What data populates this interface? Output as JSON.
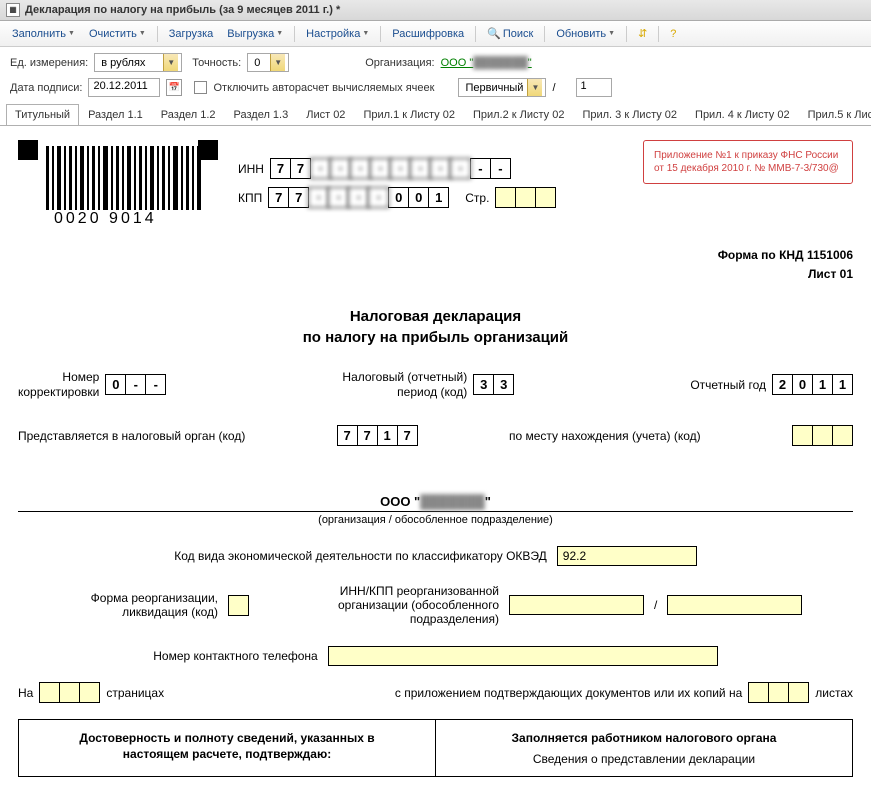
{
  "window": {
    "title": "Декларация по налогу на прибыль (за 9 месяцев 2011 г.) *"
  },
  "toolbar": {
    "fill": "Заполнить",
    "clear": "Очистить",
    "load": "Загрузка",
    "upload": "Выгрузка",
    "settings": "Настройка",
    "decode": "Расшифровка",
    "search": "Поиск",
    "refresh": "Обновить"
  },
  "params": {
    "unit_label": "Ед. измерения:",
    "unit_value": "в рублях",
    "precision_label": "Точность:",
    "precision_value": "0",
    "org_label": "Организация:",
    "org_value": "ООО \"███████\"",
    "date_label": "Дата подписи:",
    "date_value": "20.12.2011",
    "autorecalc_label": "Отключить авторасчет вычисляемых ячеек",
    "primary_value": "Первичный",
    "slash": "/",
    "page_num": "1"
  },
  "tabs": [
    "Титульный",
    "Раздел 1.1",
    "Раздел 1.2",
    "Раздел 1.3",
    "Лист 02",
    "Прил.1 к Листу 02",
    "Прил.2 к Листу 02",
    "Прил. 3 к Листу 02",
    "Прил. 4 к Листу 02",
    "Прил.5 к Листу 02",
    "Ли"
  ],
  "active_tab": 0,
  "form": {
    "barcode_text": "0020 9014",
    "inn_label": "ИНН",
    "inn": [
      "7",
      "7",
      "·",
      "·",
      "·",
      "·",
      "·",
      "·",
      "·",
      "·",
      "-",
      "-"
    ],
    "kpp_label": "КПП",
    "kpp": [
      "7",
      "7",
      "·",
      "·",
      "·",
      "·",
      "0",
      "0",
      "1"
    ],
    "str_label": "Стр.",
    "str_cells": 3,
    "notice1": "Приложение №1 к приказу ФНС России",
    "notice2": "от 15 декабря 2010 г. № ММВ-7-3/730@",
    "knd": "Форма по КНД 1151006",
    "list": "Лист 01",
    "title1": "Налоговая декларация",
    "title2": "по налогу на прибыль организаций",
    "corr_label1": "Номер",
    "corr_label2": "корректировки",
    "corr": [
      "0",
      "-",
      "-"
    ],
    "period_label1": "Налоговый (отчетный)",
    "period_label2": "период (код)",
    "period": [
      "3",
      "3"
    ],
    "year_label": "Отчетный год",
    "year": [
      "2",
      "0",
      "1",
      "1"
    ],
    "tax_org_label": "Представляется в налоговый орган (код)",
    "tax_org": [
      "7",
      "7",
      "1",
      "7"
    ],
    "place_label": "по месту нахождения (учета) (код)",
    "place_cells": 3,
    "org_name": "ООО \"███████\"",
    "org_subnote": "(организация / обособленное подразделение)",
    "okved_label": "Код вида экономической деятельности по классификатору ОКВЭД",
    "okved_value": "92.2",
    "reorg_label1": "Форма реорганизации,",
    "reorg_label2": "ликвидация (код)",
    "reorg_innkpp_label1": "ИНН/КПП реорганизованной",
    "reorg_innkpp_label2": "организации (обособленного",
    "reorg_innkpp_label3": "подразделения)",
    "reorg_slash": "/",
    "phone_label": "Номер контактного телефона",
    "pages_on": "На",
    "pages_suffix": "страницах",
    "attach_label": "с приложением подтверждающих документов или их копий на",
    "attach_suffix": "листах",
    "confirm_head1": "Достоверность и полноту сведений, указанных в",
    "confirm_head2": "настоящем расчете, подтверждаю:",
    "filled_head": "Заполняется работником налогового органа",
    "filled_sub": "Сведения о представлении декларации"
  },
  "colors": {
    "yellow_cell": "#ffffc8",
    "notice_border": "#d04040",
    "link_green": "#008000"
  }
}
